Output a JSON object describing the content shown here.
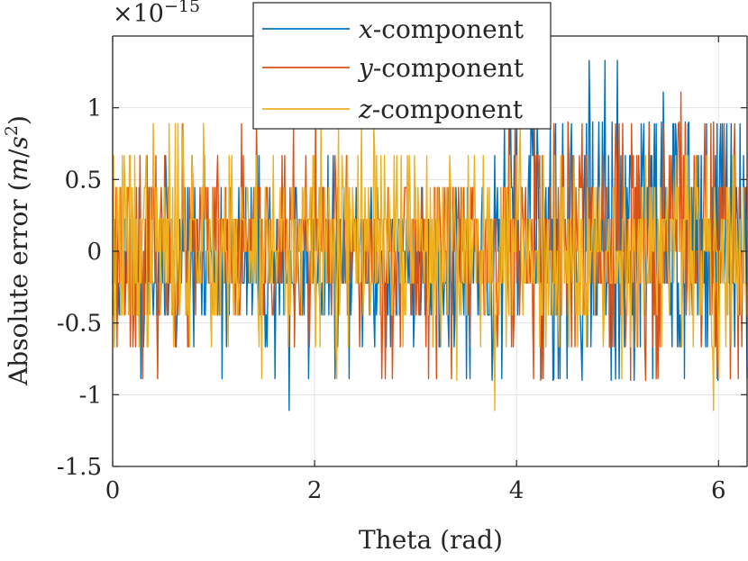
{
  "chart_data": {
    "type": "line",
    "xlabel": "Theta (rad)",
    "ylabel": {
      "prefix": "Absolute error (",
      "m": "m",
      "slash": "/",
      "s": "s",
      "exp": "2",
      "suffix": ")"
    },
    "exponent_label": {
      "base": "×10",
      "power": "−15"
    },
    "xlim": [
      0,
      6.2832
    ],
    "ylim": [
      -1.5,
      1.5
    ],
    "xticks": [
      0,
      2,
      4,
      6
    ],
    "xtick_labels": [
      "0",
      "2",
      "4",
      "6"
    ],
    "yticks": [
      -1.5,
      -1,
      -0.5,
      0,
      0.5,
      1
    ],
    "ytick_labels": [
      "-1.5",
      "-1",
      "-0.5",
      "0",
      "0.5",
      "1"
    ],
    "grid": true,
    "legend_position": "top-center",
    "n_points": 720,
    "series": [
      {
        "name": "x-component",
        "name_var": "x",
        "name_suffix": "-component",
        "color": "#0072BD",
        "seed": 11,
        "left_amp": 0.55,
        "right_amp": 1.0,
        "left_bias": -0.1,
        "right_bias": 0.15,
        "values_note": "noise in multiples of 0.222 (×1e-15), range about -1.11 to 1.33"
      },
      {
        "name": "y-component",
        "name_var": "y",
        "name_suffix": "-component",
        "color": "#D95319",
        "seed": 23,
        "left_amp": 0.6,
        "right_amp": 0.85,
        "left_bias": 0.0,
        "right_bias": 0.08,
        "values_note": "noise in multiples of 0.222 (×1e-15), range about -0.89 to 1.11"
      },
      {
        "name": "z-component",
        "name_var": "z",
        "name_suffix": "-component",
        "color": "#EDB120",
        "seed": 37,
        "left_amp": 0.65,
        "right_amp": 0.6,
        "left_bias": 0.05,
        "right_bias": 0.0,
        "values_note": "noise in multiples of 0.222 (×1e-15), range about -1.11 to 0.89"
      }
    ],
    "peaks": [
      {
        "series": 0,
        "x": 1.75,
        "y": -1.11
      },
      {
        "series": 0,
        "x": 3.88,
        "y": 0.89
      },
      {
        "series": 0,
        "x": 4.72,
        "y": 1.33
      },
      {
        "series": 0,
        "x": 4.88,
        "y": 1.33
      },
      {
        "series": 0,
        "x": 5.0,
        "y": 1.33
      },
      {
        "series": 0,
        "x": 5.45,
        "y": 1.11
      },
      {
        "series": 0,
        "x": 4.98,
        "y": -0.89
      },
      {
        "series": 1,
        "x": 5.63,
        "y": 1.11
      },
      {
        "series": 1,
        "x": 5.05,
        "y": 0.89
      },
      {
        "series": 1,
        "x": 4.92,
        "y": -0.67
      },
      {
        "series": 2,
        "x": 3.78,
        "y": -1.11
      },
      {
        "series": 2,
        "x": 5.95,
        "y": -1.11
      },
      {
        "series": 2,
        "x": 0.02,
        "y": -0.67
      },
      {
        "series": 2,
        "x": 0.7,
        "y": 0.89
      },
      {
        "series": 2,
        "x": 0.9,
        "y": 0.89
      }
    ]
  }
}
